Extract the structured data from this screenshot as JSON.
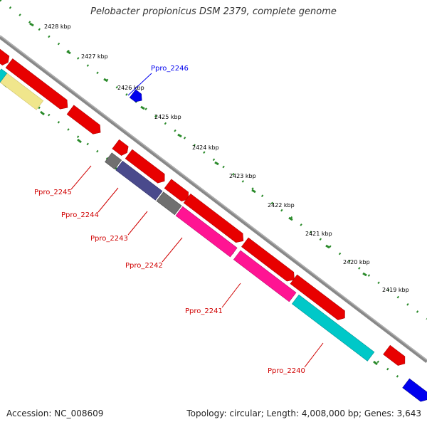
{
  "title": "Pelobacter propionicus DSM 2379, complete genome",
  "footer": {
    "accession": "Accession: NC_008609",
    "summary": "Topology: circular; Length: 4,008,000 bp; Genes: 3,643"
  },
  "ticks": [
    "2428 kbp",
    "2427 kbp",
    "2426 kbp",
    "2425 kbp",
    "2424 kbp",
    "2423 kbp",
    "2422 kbp",
    "2421 kbp",
    "2420 kbp",
    "2419 kbp"
  ],
  "genes": {
    "g2246": "Ppro_2246",
    "g2245": "Ppro_2245",
    "g2244": "Ppro_2244",
    "g2243": "Ppro_2243",
    "g2242": "Ppro_2242",
    "g2241": "Ppro_2241",
    "g2240": "Ppro_2240"
  },
  "colors": {
    "red": "#e80000",
    "blue": "#0000ee",
    "grey": "#707070",
    "slate": "#4a4a8c",
    "magenta": "#ff1493",
    "cyan": "#00c8c8",
    "khaki": "#f0e68c",
    "tick": "#2a8a2a",
    "backbone": "#888888"
  }
}
